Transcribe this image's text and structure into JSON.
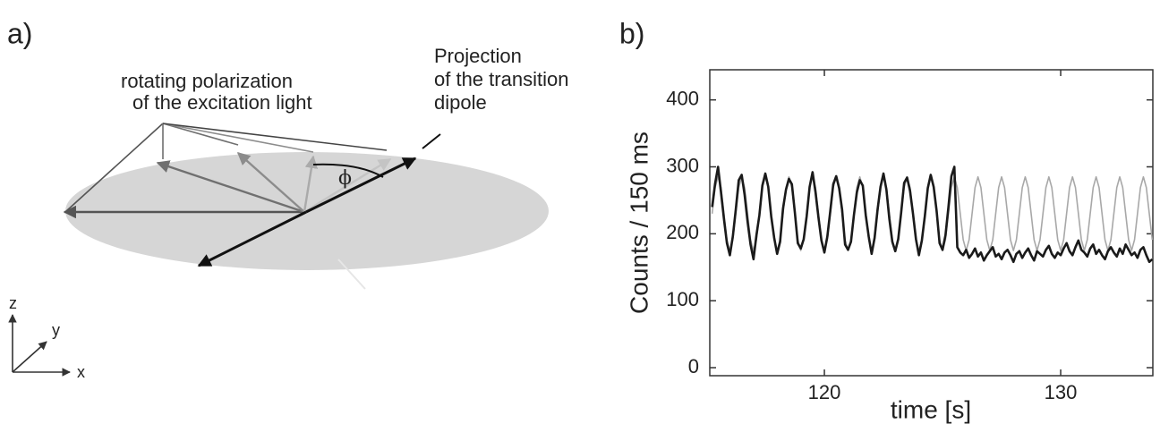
{
  "panel_a": {
    "label": "a)",
    "polarization_text": [
      "rotating polarization",
      "of the excitation light"
    ],
    "dipole_text": [
      "Projection",
      "of the transition",
      "dipole"
    ],
    "angle": "ϕ",
    "axes": [
      "z",
      "y",
      "x"
    ]
  },
  "chart_data": {
    "type": "line",
    "panel_label": "b)",
    "x_label": "time [s]",
    "y_label": "Counts / 150 ms",
    "xlim": [
      115.15,
      133.9
    ],
    "ylim": [
      -12,
      445
    ],
    "xticks": [
      120,
      130
    ],
    "yticks": [
      0,
      100,
      200,
      300,
      400
    ],
    "x": [
      115.25,
      115.375,
      115.5,
      115.625,
      115.75,
      115.875,
      116,
      116.125,
      116.25,
      116.375,
      116.5,
      116.625,
      116.75,
      116.875,
      117,
      117.125,
      117.25,
      117.375,
      117.5,
      117.625,
      117.75,
      117.875,
      118,
      118.125,
      118.25,
      118.375,
      118.5,
      118.625,
      118.75,
      118.875,
      119,
      119.125,
      119.25,
      119.375,
      119.5,
      119.625,
      119.75,
      119.875,
      120,
      120.125,
      120.25,
      120.375,
      120.5,
      120.625,
      120.75,
      120.875,
      121,
      121.125,
      121.25,
      121.375,
      121.5,
      121.625,
      121.75,
      121.875,
      122,
      122.125,
      122.25,
      122.375,
      122.5,
      122.625,
      122.75,
      122.875,
      123,
      123.125,
      123.25,
      123.375,
      123.5,
      123.625,
      123.75,
      123.875,
      124,
      124.125,
      124.25,
      124.375,
      124.5,
      124.625,
      124.75,
      124.875,
      125,
      125.125,
      125.25,
      125.375,
      125.5,
      125.625,
      125.75,
      125.875,
      126,
      126.125,
      126.25,
      126.375,
      126.5,
      126.625,
      126.75,
      126.875,
      127,
      127.125,
      127.25,
      127.375,
      127.5,
      127.625,
      127.75,
      127.875,
      128,
      128.125,
      128.25,
      128.375,
      128.5,
      128.625,
      128.75,
      128.875,
      129,
      129.125,
      129.25,
      129.375,
      129.5,
      129.625,
      129.75,
      129.875,
      130,
      130.125,
      130.25,
      130.375,
      130.5,
      130.625,
      130.75,
      130.875,
      131,
      131.125,
      131.25,
      131.375,
      131.5,
      131.625,
      131.75,
      131.875,
      132,
      132.125,
      132.25,
      132.375,
      132.5,
      132.625,
      132.75,
      132.875,
      133,
      133.125,
      133.25,
      133.375,
      133.5,
      133.625,
      133.75,
      133.875
    ],
    "series": [
      {
        "color": "#a8a8a8",
        "width": 1.6,
        "values": [
          230,
          269,
          285,
          269,
          230,
          191,
          175,
          191,
          230,
          269,
          285,
          269,
          230,
          191,
          175,
          191,
          230,
          269,
          285,
          269,
          230,
          191,
          175,
          191,
          230,
          269,
          285,
          269,
          230,
          191,
          175,
          191,
          230,
          269,
          285,
          269,
          230,
          191,
          175,
          191,
          230,
          269,
          285,
          269,
          230,
          191,
          175,
          191,
          230,
          269,
          285,
          269,
          230,
          191,
          175,
          191,
          230,
          269,
          285,
          269,
          230,
          191,
          175,
          191,
          230,
          269,
          285,
          269,
          230,
          191,
          175,
          191,
          230,
          269,
          285,
          269,
          230,
          191,
          175,
          191,
          230,
          269,
          285,
          269,
          230,
          191,
          175,
          191,
          230,
          269,
          285,
          269,
          230,
          191,
          175,
          191,
          230,
          269,
          285,
          269,
          230,
          191,
          175,
          191,
          230,
          269,
          285,
          269,
          230,
          191,
          175,
          191,
          230,
          269,
          285,
          269,
          230,
          191,
          175,
          191,
          230,
          269,
          285,
          269,
          230,
          191,
          175,
          191,
          230,
          269,
          285,
          269,
          230,
          191,
          175,
          191,
          230,
          269,
          285,
          269,
          230,
          191,
          175,
          191,
          230,
          269,
          285,
          269,
          230,
          191
        ]
      },
      {
        "color": "#1a1a1a",
        "width": 2.6,
        "values": [
          240,
          275,
          300,
          262,
          222,
          186,
          168,
          196,
          236,
          280,
          288,
          258,
          218,
          184,
          162,
          198,
          228,
          272,
          290,
          270,
          226,
          194,
          170,
          188,
          238,
          266,
          282,
          274,
          232,
          186,
          178,
          192,
          226,
          270,
          292,
          262,
          224,
          190,
          172,
          196,
          234,
          274,
          286,
          268,
          236,
          184,
          176,
          188,
          228,
          262,
          280,
          272,
          228,
          196,
          170,
          194,
          236,
          270,
          290,
          266,
          222,
          188,
          174,
          192,
          232,
          276,
          284,
          264,
          230,
          192,
          168,
          190,
          226,
          268,
          288,
          270,
          234,
          186,
          176,
          198,
          240,
          286,
          300,
          180,
          172,
          168,
          176,
          164,
          170,
          178,
          166,
          172,
          160,
          168,
          174,
          180,
          166,
          170,
          162,
          172,
          176,
          168,
          158,
          170,
          174,
          164,
          172,
          178,
          168,
          160,
          174,
          170,
          166,
          176,
          182,
          170,
          164,
          172,
          168,
          178,
          186,
          174,
          168,
          180,
          190,
          176,
          172,
          166,
          178,
          184,
          170,
          176,
          168,
          162,
          174,
          180,
          172,
          166,
          178,
          170,
          184,
          176,
          168,
          172,
          164,
          176,
          180,
          168,
          158,
          162
        ]
      }
    ]
  }
}
